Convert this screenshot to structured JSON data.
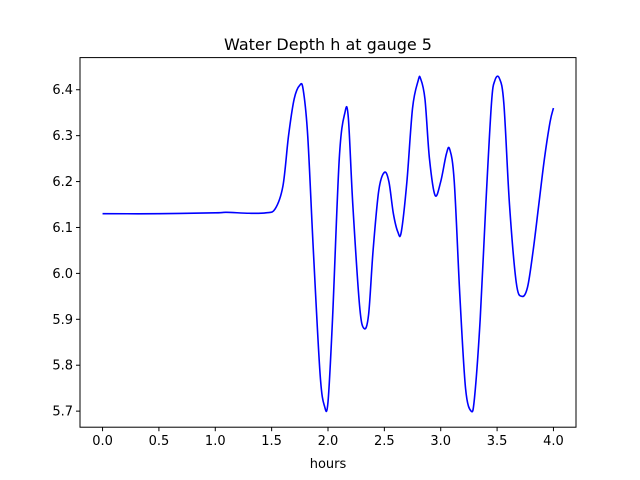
{
  "chart_data": {
    "type": "line",
    "title": "Water Depth h at gauge 5",
    "xlabel": "hours",
    "ylabel": "",
    "xlim": [
      -0.2,
      4.2
    ],
    "ylim": [
      5.665,
      6.47
    ],
    "xticks": [
      0.0,
      0.5,
      1.0,
      1.5,
      2.0,
      2.5,
      3.0,
      3.5,
      4.0
    ],
    "xtick_labels": [
      "0.0",
      "0.5",
      "1.0",
      "1.5",
      "2.0",
      "2.5",
      "3.0",
      "3.5",
      "4.0"
    ],
    "yticks": [
      5.7,
      5.8,
      5.9,
      6.0,
      6.1,
      6.2,
      6.3,
      6.4
    ],
    "ytick_labels": [
      "5.7",
      "5.8",
      "5.9",
      "6.0",
      "6.1",
      "6.2",
      "6.3",
      "6.4"
    ],
    "grid": false,
    "series": [
      {
        "color": "#0000ff",
        "x": [
          0.0,
          0.5,
          1.0,
          1.1,
          1.3,
          1.45,
          1.53,
          1.6,
          1.65,
          1.7,
          1.75,
          1.78,
          1.82,
          1.87,
          1.93,
          1.97,
          2.0,
          2.04,
          2.1,
          2.15,
          2.18,
          2.22,
          2.28,
          2.32,
          2.36,
          2.4,
          2.45,
          2.5,
          2.54,
          2.58,
          2.62,
          2.65,
          2.7,
          2.75,
          2.8,
          2.82,
          2.86,
          2.9,
          2.95,
          3.0,
          3.05,
          3.08,
          3.12,
          3.17,
          3.22,
          3.27,
          3.3,
          3.35,
          3.4,
          3.45,
          3.48,
          3.52,
          3.56,
          3.61,
          3.67,
          3.72,
          3.77,
          3.82,
          3.87,
          3.92,
          3.97,
          4.0
        ],
        "values": [
          6.13,
          6.13,
          6.132,
          6.133,
          6.131,
          6.132,
          6.14,
          6.19,
          6.3,
          6.38,
          6.41,
          6.4,
          6.3,
          6.05,
          5.78,
          5.71,
          5.72,
          5.9,
          6.25,
          6.35,
          6.34,
          6.15,
          5.93,
          5.88,
          5.91,
          6.05,
          6.18,
          6.22,
          6.2,
          6.13,
          6.09,
          6.09,
          6.2,
          6.36,
          6.42,
          6.425,
          6.38,
          6.25,
          6.17,
          6.2,
          6.26,
          6.27,
          6.2,
          5.95,
          5.75,
          5.7,
          5.73,
          5.9,
          6.15,
          6.37,
          6.42,
          6.425,
          6.37,
          6.15,
          5.98,
          5.95,
          5.97,
          6.05,
          6.15,
          6.25,
          6.33,
          6.36
        ]
      }
    ]
  }
}
